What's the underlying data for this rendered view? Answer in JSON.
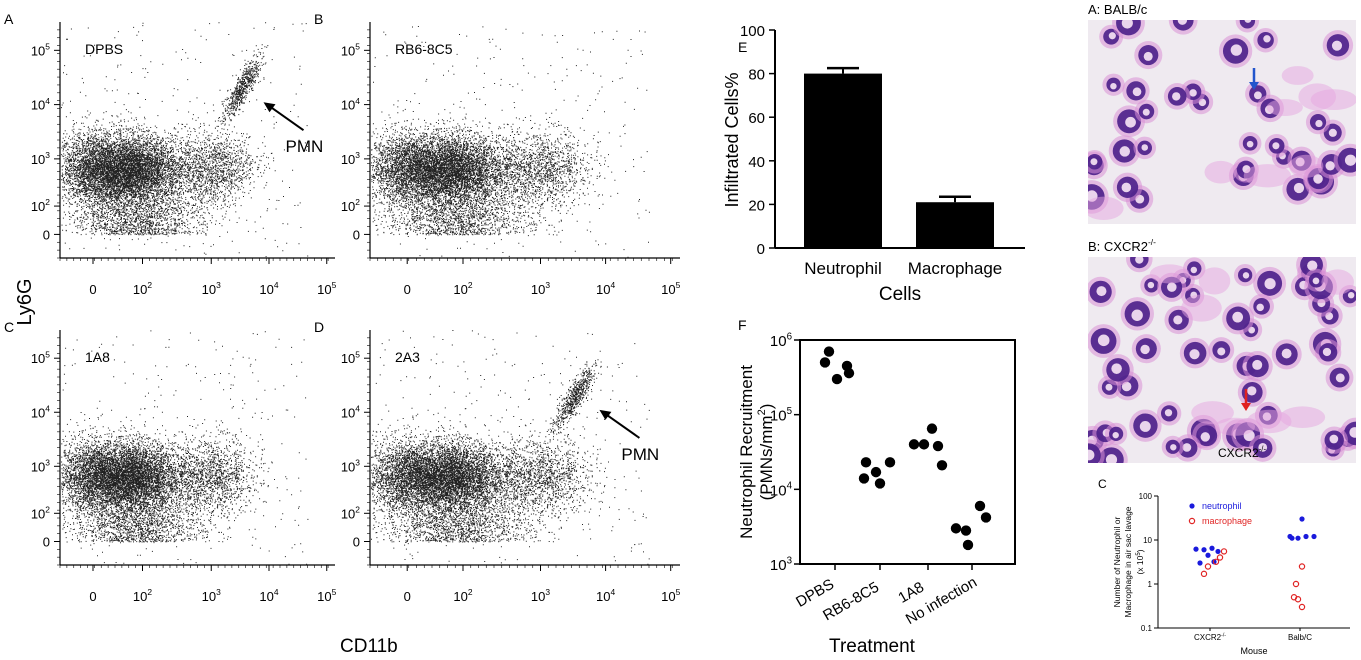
{
  "axes_common": {
    "ylabel": "Ly6G",
    "xlabel": "CD11b"
  },
  "flow_panels": [
    {
      "letter": "A",
      "label": "DPBS",
      "pmn": true,
      "pmn_label": "PMN",
      "x_ticks": [
        "0",
        "10",
        "10",
        "10",
        "10"
      ],
      "y_ticks": [
        "0",
        "10",
        "10",
        "10",
        "10"
      ],
      "x_exp": [
        "",
        "2",
        "3",
        "4",
        "5"
      ],
      "y_exp": [
        "",
        "2",
        "3",
        "4",
        "5"
      ]
    },
    {
      "letter": "B",
      "label": "RB6-8C5",
      "pmn": false,
      "pmn_label": "",
      "x_ticks": [
        "0",
        "10",
        "10",
        "10",
        "10"
      ],
      "y_ticks": [
        "0",
        "10",
        "10",
        "10",
        "10"
      ],
      "x_exp": [
        "",
        "2",
        "3",
        "4",
        "5"
      ],
      "y_exp": [
        "",
        "2",
        "3",
        "4",
        "5"
      ]
    },
    {
      "letter": "C",
      "label": "1A8",
      "pmn": false,
      "pmn_label": "",
      "x_ticks": [
        "0",
        "10",
        "10",
        "10",
        "10"
      ],
      "y_ticks": [
        "0",
        "10",
        "10",
        "10",
        "10"
      ],
      "x_exp": [
        "",
        "2",
        "3",
        "4",
        "5"
      ],
      "y_exp": [
        "",
        "2",
        "3",
        "4",
        "5"
      ]
    },
    {
      "letter": "D",
      "label": "2A3",
      "pmn": true,
      "pmn_label": "PMN",
      "x_ticks": [
        "0",
        "10",
        "10",
        "10",
        "10"
      ],
      "y_ticks": [
        "0",
        "10",
        "10",
        "10",
        "10"
      ],
      "x_exp": [
        "",
        "2",
        "3",
        "4",
        "5"
      ],
      "y_exp": [
        "",
        "2",
        "3",
        "4",
        "5"
      ]
    }
  ],
  "chart_data": [
    {
      "id": "E",
      "type": "bar",
      "letter": "E",
      "categories": [
        "Neutrophil",
        "Macrophage"
      ],
      "values": [
        80,
        21
      ],
      "errors": [
        2.5,
        2.5
      ],
      "ylabel": "Infiltrated Cells%",
      "xlabel": "Cells",
      "ylim": [
        0,
        100
      ],
      "yticks": [
        "0",
        "20",
        "40",
        "60",
        "80",
        "100"
      ],
      "bar_color": "#000000"
    },
    {
      "id": "F",
      "type": "scatter",
      "letter": "F",
      "categories": [
        "DPBS",
        "RB6-8C5",
        "1A8",
        "No infection"
      ],
      "yscale": "log",
      "ylim": [
        1000,
        1000000
      ],
      "ylabel_line1": "Neutrophil Recruitment",
      "ylabel_line2": "(PMNs/mm",
      "ylabel_sup": "2",
      "ylabel_close": ")",
      "xlabel": "Treatment",
      "ytick_base": "10",
      "ytick_exp": [
        "3",
        "4",
        "5",
        "6"
      ],
      "points": [
        [
          700000,
          450000,
          500000,
          300000,
          360000
        ],
        [
          23000,
          17000,
          12000,
          23000,
          14000
        ],
        [
          40000,
          65000,
          38000,
          40000,
          21000
        ],
        [
          3000,
          6000,
          2800,
          4200,
          1800
        ]
      ]
    },
    {
      "id": "C2",
      "type": "scatter",
      "letter": "C",
      "categories": [
        "CXCR2",
        "Balb/C"
      ],
      "cat_sup": [
        "-/-",
        ""
      ],
      "yscale": "log",
      "ylim": [
        0.1,
        100
      ],
      "yticks": [
        "0.1",
        "1",
        "10",
        "100"
      ],
      "ylabel_line1": "Number of Neutrophil or",
      "ylabel_line2": "Macrophage in air sac lavage",
      "ylabel_line3": "(x 10",
      "ylabel_sup": "5",
      "ylabel_close": ")",
      "xlabel": "Mouse",
      "series": [
        {
          "name": "neutrophil",
          "color": "#1a1adc",
          "filled": true,
          "values": [
            [
              6.2,
              6.0,
              6.5,
              5.5,
              3.0,
              4.5,
              3.2
            ],
            [
              30,
              12,
              11,
              12,
              12,
              11
            ]
          ]
        },
        {
          "name": "macrophage",
          "color": "#e02424",
          "filled": false,
          "values": [
            [
              2.5,
              3.2,
              1.7,
              4.0,
              5.5
            ],
            [
              2.5,
              1.0,
              0.5,
              0.3,
              0.45
            ]
          ]
        }
      ]
    }
  ],
  "micrographs": [
    {
      "letter": "A",
      "title": "A: BALB/c",
      "arrow_color": "#2255cc",
      "caption": "",
      "caption_sup": ""
    },
    {
      "letter": "B",
      "title": "B: CXCR2",
      "title_sup": "-/-",
      "arrow_color": "#e02020",
      "caption": "CXCR2",
      "caption_sup": "-/-"
    }
  ]
}
